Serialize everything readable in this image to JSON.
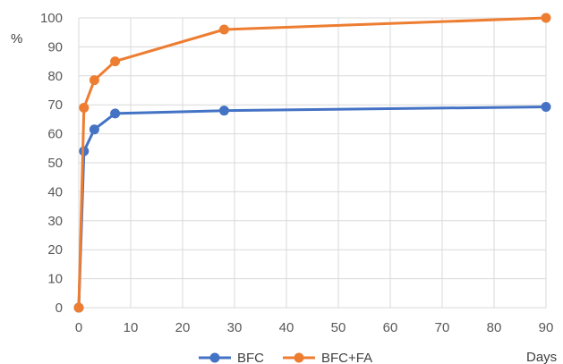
{
  "chart_data": {
    "type": "line",
    "title": "",
    "xlabel": "Days",
    "ylabel": "%",
    "xlim": [
      0,
      90
    ],
    "ylim": [
      0,
      100
    ],
    "x_ticks": [
      0,
      10,
      20,
      30,
      40,
      50,
      60,
      70,
      80,
      90
    ],
    "y_ticks": [
      0,
      10,
      20,
      30,
      40,
      50,
      60,
      70,
      80,
      90,
      100
    ],
    "grid": true,
    "legend_position": "bottom",
    "series": [
      {
        "name": "BFC",
        "color": "#4472c4",
        "x": [
          0,
          1,
          3,
          7,
          28,
          90
        ],
        "y": [
          0,
          54,
          61.5,
          67,
          68,
          69.3
        ]
      },
      {
        "name": "BFC+FA",
        "color": "#ed7d31",
        "x": [
          0,
          1,
          3,
          7,
          28,
          90
        ],
        "y": [
          0,
          69,
          78.5,
          85,
          96,
          100
        ]
      }
    ]
  }
}
